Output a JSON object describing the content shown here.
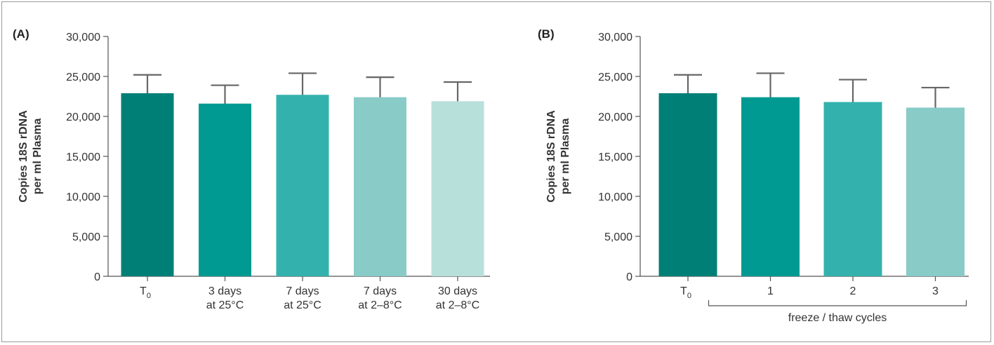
{
  "chart_data": [
    {
      "type": "bar",
      "panel_label": "(A)",
      "ylabel_lines": [
        "Copies 18S rDNA",
        "per ml Plasma"
      ],
      "ylim": [
        0,
        30000
      ],
      "yticks": [
        "0",
        "5,000",
        "10,000",
        "15,000",
        "20,000",
        "25,000",
        "30,000"
      ],
      "categories": [
        [
          "T",
          "0"
        ],
        [
          "3 days",
          "at 25°C"
        ],
        [
          "7 days",
          "at 25°C"
        ],
        [
          "7 days",
          "at 2–8°C"
        ],
        [
          "30 days",
          "at 2–8°C"
        ]
      ],
      "values": [
        22900,
        21600,
        22700,
        22400,
        21900
      ],
      "error": [
        2300,
        2300,
        2700,
        2500,
        2400
      ],
      "colors": [
        "#007f76",
        "#009a92",
        "#33b2ad",
        "#88cbc7",
        "#b8e0da"
      ],
      "group_label": ""
    },
    {
      "type": "bar",
      "panel_label": "(B)",
      "ylabel_lines": [
        "Copies 18S rDNA",
        "per ml Plasma"
      ],
      "ylim": [
        0,
        30000
      ],
      "yticks": [
        "0",
        "5,000",
        "10,000",
        "15,000",
        "20,000",
        "25,000",
        "30,000"
      ],
      "categories": [
        [
          "T",
          "0"
        ],
        [
          "1"
        ],
        [
          "2"
        ],
        [
          "3"
        ]
      ],
      "values": [
        22900,
        22400,
        21800,
        21100
      ],
      "error": [
        2300,
        3000,
        2800,
        2500
      ],
      "colors": [
        "#007f76",
        "#009a92",
        "#33b2ad",
        "#88cbc7"
      ],
      "group_label": "freeze / thaw cycles"
    }
  ]
}
